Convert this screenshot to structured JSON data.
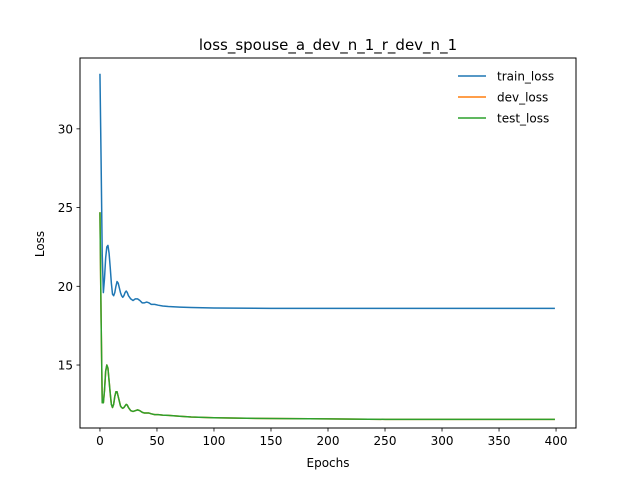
{
  "chart_data": {
    "type": "line",
    "title": "loss_spouse_a_dev_n_1_r_dev_n_1",
    "xlabel": "Epochs",
    "ylabel": "Loss",
    "xlim": [
      -17.5,
      417.5
    ],
    "ylim": [
      11.0,
      34.5
    ],
    "xticks": [
      0,
      50,
      100,
      150,
      200,
      250,
      300,
      350,
      400
    ],
    "yticks": [
      15,
      20,
      25,
      30
    ],
    "grid": false,
    "legend_position": "top-right",
    "series": [
      {
        "name": "train_loss",
        "color": "#1f77b4",
        "x": [
          0,
          1,
          2,
          3,
          4,
          5,
          6,
          7,
          8,
          9,
          10,
          11,
          12,
          13,
          14,
          15,
          16,
          17,
          18,
          19,
          20,
          21,
          22,
          23,
          24,
          25,
          27,
          29,
          31,
          33,
          35,
          37,
          39,
          41,
          43,
          45,
          48,
          51,
          55,
          60,
          70,
          80,
          100,
          150,
          200,
          250,
          300,
          350,
          399
        ],
        "y": [
          33.5,
          28.0,
          22.0,
          19.6,
          20.5,
          21.8,
          22.5,
          22.6,
          22.1,
          21.2,
          20.2,
          19.5,
          19.4,
          19.6,
          20.0,
          20.3,
          20.2,
          19.9,
          19.6,
          19.4,
          19.3,
          19.4,
          19.6,
          19.7,
          19.6,
          19.4,
          19.2,
          19.1,
          19.2,
          19.2,
          19.1,
          18.95,
          18.95,
          19.0,
          18.95,
          18.85,
          18.85,
          18.8,
          18.75,
          18.72,
          18.68,
          18.65,
          18.62,
          18.6,
          18.6,
          18.6,
          18.6,
          18.6,
          18.6
        ]
      },
      {
        "name": "dev_loss",
        "color": "#ff7f0e",
        "x": [
          0,
          1,
          2,
          3,
          4,
          5,
          6,
          7,
          8,
          9,
          10,
          11,
          12,
          13,
          14,
          15,
          16,
          17,
          18,
          19,
          20,
          21,
          22,
          23,
          24,
          25,
          27,
          29,
          31,
          33,
          35,
          37,
          39,
          41,
          43,
          45,
          48,
          51,
          55,
          60,
          70,
          80,
          100,
          150,
          200,
          250,
          300,
          350,
          399
        ],
        "y": [
          24.7,
          18.0,
          12.6,
          12.6,
          13.4,
          14.6,
          15.0,
          14.8,
          14.0,
          13.2,
          12.5,
          12.3,
          12.5,
          13.0,
          13.3,
          13.3,
          13.0,
          12.7,
          12.4,
          12.3,
          12.25,
          12.3,
          12.4,
          12.5,
          12.45,
          12.3,
          12.1,
          12.05,
          12.1,
          12.15,
          12.1,
          12.0,
          11.95,
          11.95,
          11.95,
          11.9,
          11.85,
          11.85,
          11.82,
          11.8,
          11.75,
          11.7,
          11.65,
          11.6,
          11.58,
          11.55,
          11.55,
          11.55,
          11.55
        ]
      },
      {
        "name": "test_loss",
        "color": "#2ca02c",
        "x": [
          0,
          1,
          2,
          3,
          4,
          5,
          6,
          7,
          8,
          9,
          10,
          11,
          12,
          13,
          14,
          15,
          16,
          17,
          18,
          19,
          20,
          21,
          22,
          23,
          24,
          25,
          27,
          29,
          31,
          33,
          35,
          37,
          39,
          41,
          43,
          45,
          48,
          51,
          55,
          60,
          70,
          80,
          100,
          150,
          200,
          250,
          300,
          350,
          399
        ],
        "y": [
          24.7,
          18.0,
          12.6,
          12.6,
          13.4,
          14.6,
          15.0,
          14.8,
          14.0,
          13.2,
          12.5,
          12.3,
          12.5,
          13.0,
          13.3,
          13.3,
          13.0,
          12.7,
          12.4,
          12.3,
          12.25,
          12.3,
          12.4,
          12.5,
          12.45,
          12.3,
          12.1,
          12.05,
          12.1,
          12.15,
          12.1,
          12.0,
          11.95,
          11.95,
          11.95,
          11.9,
          11.85,
          11.85,
          11.82,
          11.8,
          11.75,
          11.7,
          11.65,
          11.6,
          11.58,
          11.55,
          11.55,
          11.55,
          11.55
        ]
      }
    ]
  }
}
